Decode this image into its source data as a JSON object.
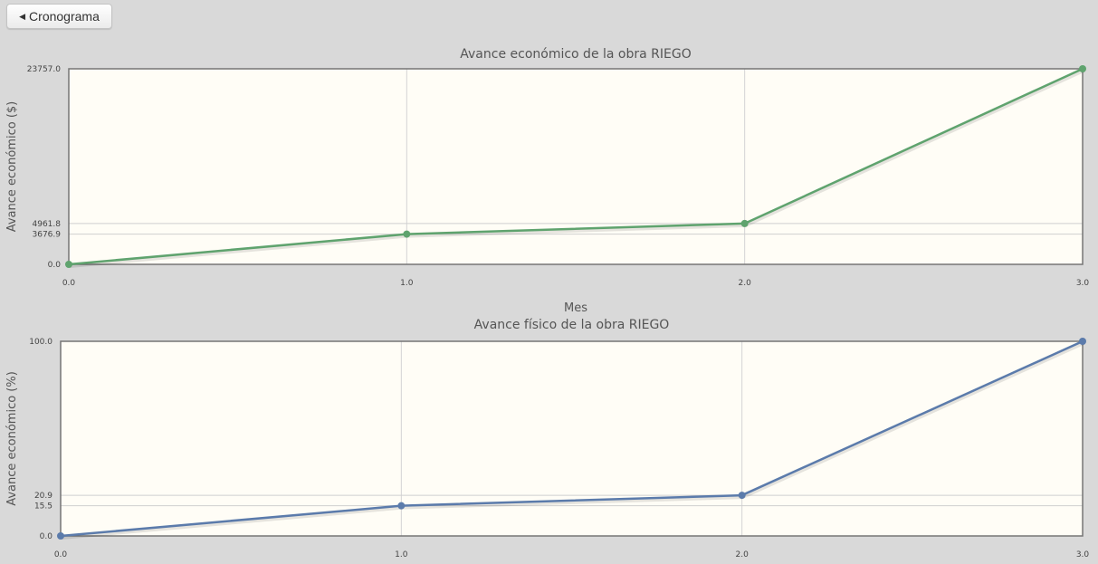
{
  "header": {
    "back_label": "Cronograma",
    "back_icon": "caret-left-icon"
  },
  "chart_data": [
    {
      "type": "line",
      "title": "Avance económico de la obra RIEGO",
      "xlabel": "Mes",
      "ylabel": "Avance económico ($)",
      "x": [
        0.0,
        1.0,
        2.0,
        3.0
      ],
      "xticks": [
        "0.0",
        "1.0",
        "2.0",
        "3.0"
      ],
      "yticks": [
        0.0,
        3676.9,
        4961.8,
        23757.0
      ],
      "ytick_labels": [
        "0.0",
        "3676.9",
        "4961.8",
        "23757.0"
      ],
      "series": [
        {
          "values": [
            0.0,
            3676.9,
            4961.8,
            23757.0
          ]
        }
      ],
      "xlim": [
        0,
        3
      ],
      "ylim": [
        0,
        23757.0
      ],
      "grid": true,
      "color": "#5fa36e"
    },
    {
      "type": "line",
      "title": "Avance físico de la obra RIEGO",
      "xlabel": "",
      "ylabel": "Avance económico (%)",
      "x": [
        0.0,
        1.0,
        2.0,
        3.0
      ],
      "xticks": [
        "0.0",
        "1.0",
        "2.0",
        "3.0"
      ],
      "yticks": [
        0.0,
        15.5,
        20.9,
        100.0
      ],
      "ytick_labels": [
        "0.0",
        "15.5",
        "20.9",
        "100.0"
      ],
      "series": [
        {
          "values": [
            0.0,
            15.5,
            20.9,
            100.0
          ]
        }
      ],
      "xlim": [
        0,
        3
      ],
      "ylim": [
        0,
        100.0
      ],
      "grid": true,
      "color": "#5b7bab"
    }
  ]
}
